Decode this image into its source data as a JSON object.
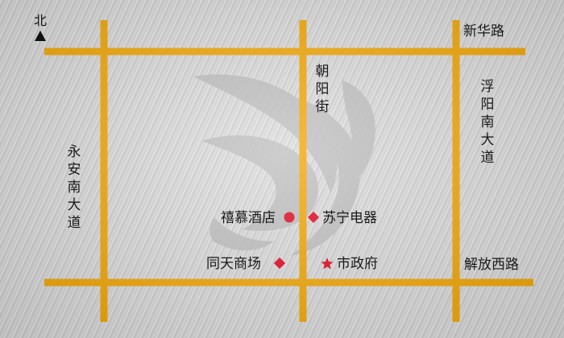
{
  "compass": {
    "label": "北"
  },
  "colors": {
    "road": "#f0a400",
    "marker_red": "#e0001b",
    "logo": "#b9b9b9"
  },
  "roads": {
    "xinhua": "新华路",
    "jiefang_west": "解放西路",
    "yongan_south": "永安南大道",
    "chaoyang": "朝阳街",
    "fuyang_south": "浮阳南大道"
  },
  "places": [
    {
      "name": "禧慕酒店",
      "marker": "circle"
    },
    {
      "name": "苏宁电器",
      "marker": "diamond"
    },
    {
      "name": "同天商场",
      "marker": "diamond"
    },
    {
      "name": "市政府",
      "marker": "star"
    }
  ]
}
